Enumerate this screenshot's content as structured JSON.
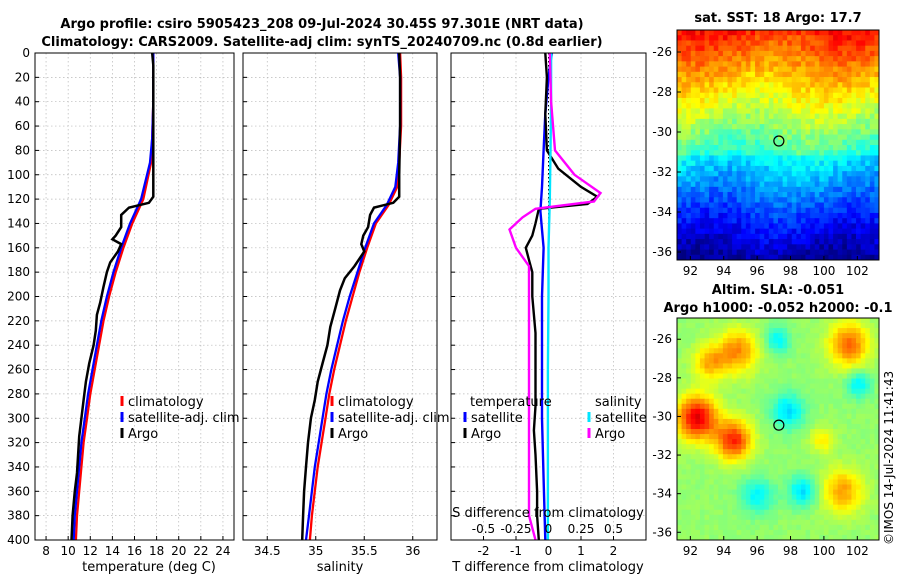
{
  "titles": {
    "line1": "Argo profile: csiro 5905423_208 09-Jul-2024 30.45S 97.301E (NRT data)",
    "line2": "Climatology: CARS2009. Satellite-adj clim: synTS_20240709.nc (0.8d earlier)"
  },
  "watermark": "©IMOS 14-Jul-2024 11:41:43",
  "colors": {
    "climatology": "#ff0000",
    "satellite": "#0000ff",
    "argo": "#000000",
    "sal_satellite": "#00e5ff",
    "sal_argo": "#ff00ff"
  },
  "chart_data": [
    {
      "type": "line",
      "name": "temperature",
      "xlabel": "temperature (deg C)",
      "ylabel": "",
      "xlim": [
        7,
        25
      ],
      "ylim": [
        400,
        0
      ],
      "xticks": [
        8,
        10,
        12,
        14,
        16,
        18,
        20,
        22,
        24
      ],
      "yticks": [
        0,
        20,
        40,
        60,
        80,
        100,
        120,
        140,
        160,
        180,
        200,
        220,
        240,
        260,
        280,
        300,
        320,
        340,
        360,
        380,
        400
      ],
      "legend": [
        "climatology",
        "satellite-adj. clim",
        "Argo"
      ],
      "series": [
        {
          "name": "climatology",
          "color": "#ff0000",
          "points": [
            [
              17.7,
              0
            ],
            [
              17.7,
              40
            ],
            [
              17.6,
              70
            ],
            [
              17.5,
              90
            ],
            [
              16.8,
              120
            ],
            [
              15.8,
              140
            ],
            [
              15.0,
              160
            ],
            [
              14.3,
              180
            ],
            [
              13.7,
              200
            ],
            [
              13.2,
              220
            ],
            [
              12.8,
              240
            ],
            [
              12.4,
              260
            ],
            [
              12.0,
              280
            ],
            [
              11.7,
              300
            ],
            [
              11.4,
              320
            ],
            [
              11.2,
              340
            ],
            [
              11.0,
              360
            ],
            [
              10.8,
              380
            ],
            [
              10.7,
              400
            ]
          ]
        },
        {
          "name": "satellite-adj. clim",
          "color": "#0000ff",
          "points": [
            [
              17.7,
              0
            ],
            [
              17.7,
              40
            ],
            [
              17.6,
              70
            ],
            [
              17.4,
              90
            ],
            [
              16.6,
              120
            ],
            [
              15.6,
              140
            ],
            [
              14.8,
              160
            ],
            [
              14.1,
              180
            ],
            [
              13.5,
              200
            ],
            [
              13.0,
              220
            ],
            [
              12.6,
              240
            ],
            [
              12.2,
              260
            ],
            [
              11.8,
              280
            ],
            [
              11.5,
              300
            ],
            [
              11.2,
              320
            ],
            [
              11.0,
              340
            ],
            [
              10.8,
              360
            ],
            [
              10.6,
              380
            ],
            [
              10.5,
              400
            ]
          ]
        },
        {
          "name": "Argo",
          "color": "#000000",
          "points": [
            [
              17.6,
              0
            ],
            [
              17.7,
              10
            ],
            [
              17.7,
              30
            ],
            [
              17.7,
              60
            ],
            [
              17.7,
              100
            ],
            [
              17.7,
              118
            ],
            [
              17.3,
              123
            ],
            [
              15.5,
              127
            ],
            [
              14.8,
              133
            ],
            [
              14.8,
              143
            ],
            [
              14.3,
              150
            ],
            [
              14.0,
              153
            ],
            [
              14.8,
              157
            ],
            [
              14.5,
              163
            ],
            [
              13.8,
              172
            ],
            [
              13.5,
              180
            ],
            [
              13.2,
              192
            ],
            [
              12.9,
              205
            ],
            [
              12.6,
              215
            ],
            [
              12.5,
              228
            ],
            [
              12.3,
              240
            ],
            [
              11.9,
              255
            ],
            [
              11.6,
              270
            ],
            [
              11.4,
              285
            ],
            [
              11.2,
              300
            ],
            [
              11.0,
              315
            ],
            [
              10.9,
              330
            ],
            [
              10.8,
              345
            ],
            [
              10.6,
              360
            ],
            [
              10.4,
              380
            ],
            [
              10.3,
              400
            ]
          ]
        }
      ]
    },
    {
      "type": "line",
      "name": "salinity",
      "xlabel": "salinity",
      "ylabel": "",
      "xlim": [
        34.25,
        36.25
      ],
      "ylim": [
        400,
        0
      ],
      "xticks": [
        34.5,
        35,
        35.5,
        36
      ],
      "legend": [
        "climatology",
        "satellite-adj. clim",
        "Argo"
      ],
      "series": [
        {
          "name": "climatology",
          "color": "#ff0000",
          "points": [
            [
              35.87,
              0
            ],
            [
              35.88,
              20
            ],
            [
              35.88,
              60
            ],
            [
              35.86,
              90
            ],
            [
              35.84,
              110
            ],
            [
              35.75,
              125
            ],
            [
              35.62,
              140
            ],
            [
              35.53,
              160
            ],
            [
              35.45,
              180
            ],
            [
              35.38,
              200
            ],
            [
              35.31,
              220
            ],
            [
              35.25,
              240
            ],
            [
              35.19,
              260
            ],
            [
              35.14,
              280
            ],
            [
              35.1,
              300
            ],
            [
              35.06,
              320
            ],
            [
              35.02,
              340
            ],
            [
              34.99,
              360
            ],
            [
              34.96,
              380
            ],
            [
              34.94,
              400
            ]
          ]
        },
        {
          "name": "satellite-adj. clim",
          "color": "#0000ff",
          "points": [
            [
              35.85,
              0
            ],
            [
              35.87,
              20
            ],
            [
              35.87,
              60
            ],
            [
              35.85,
              90
            ],
            [
              35.82,
              110
            ],
            [
              35.73,
              125
            ],
            [
              35.6,
              140
            ],
            [
              35.51,
              160
            ],
            [
              35.43,
              180
            ],
            [
              35.35,
              200
            ],
            [
              35.28,
              220
            ],
            [
              35.22,
              240
            ],
            [
              35.16,
              260
            ],
            [
              35.11,
              280
            ],
            [
              35.07,
              300
            ],
            [
              35.03,
              320
            ],
            [
              34.99,
              340
            ],
            [
              34.96,
              360
            ],
            [
              34.93,
              380
            ],
            [
              34.9,
              400
            ]
          ]
        },
        {
          "name": "Argo",
          "color": "#000000",
          "points": [
            [
              35.86,
              0
            ],
            [
              35.87,
              20
            ],
            [
              35.87,
              60
            ],
            [
              35.86,
              100
            ],
            [
              35.86,
              118
            ],
            [
              35.8,
              123
            ],
            [
              35.6,
              127
            ],
            [
              35.56,
              133
            ],
            [
              35.54,
              143
            ],
            [
              35.49,
              150
            ],
            [
              35.47,
              157
            ],
            [
              35.5,
              163
            ],
            [
              35.4,
              175
            ],
            [
              35.3,
              185
            ],
            [
              35.25,
              195
            ],
            [
              35.2,
              210
            ],
            [
              35.15,
              225
            ],
            [
              35.12,
              240
            ],
            [
              35.07,
              255
            ],
            [
              35.02,
              270
            ],
            [
              34.99,
              285
            ],
            [
              34.95,
              300
            ],
            [
              34.92,
              320
            ],
            [
              34.9,
              340
            ],
            [
              34.88,
              360
            ],
            [
              34.87,
              380
            ],
            [
              34.86,
              400
            ]
          ]
        }
      ]
    },
    {
      "type": "line",
      "name": "difference",
      "xlabel": "T difference from climatology",
      "xlabel_top": "S difference from climatology",
      "xlim": [
        -3,
        3
      ],
      "xlim_salinity": [
        -0.75,
        0.75
      ],
      "ylim": [
        400,
        0
      ],
      "xticks": [
        -2,
        -1,
        0,
        1,
        2
      ],
      "xticks_salinity": [
        -0.5,
        -0.25,
        0,
        0.25,
        0.5
      ],
      "xtick_labels_salinity": [
        "-0.5",
        "-0.25",
        "0",
        "0.25",
        "0.5"
      ],
      "legend_headers": [
        "temperature",
        "salinity"
      ],
      "legend": [
        "satellite",
        "Argo",
        "satellite",
        "Argo"
      ],
      "series": [
        {
          "name": "T satellite",
          "color": "#0000ff",
          "points": [
            [
              0.1,
              0
            ],
            [
              0,
              20
            ],
            [
              -0.1,
              50
            ],
            [
              -0.15,
              80
            ],
            [
              -0.2,
              110
            ],
            [
              -0.25,
              130
            ],
            [
              -0.15,
              160
            ],
            [
              -0.2,
              200
            ],
            [
              -0.2,
              250
            ],
            [
              -0.2,
              300
            ],
            [
              -0.15,
              350
            ],
            [
              -0.1,
              400
            ]
          ]
        },
        {
          "name": "T Argo",
          "color": "#000000",
          "points": [
            [
              -0.1,
              0
            ],
            [
              -0.05,
              20
            ],
            [
              -0.1,
              50
            ],
            [
              -0.05,
              80
            ],
            [
              0.3,
              95
            ],
            [
              1.0,
              110
            ],
            [
              1.5,
              118
            ],
            [
              1.2,
              124
            ],
            [
              -0.3,
              128
            ],
            [
              -0.4,
              140
            ],
            [
              -0.5,
              150
            ],
            [
              -0.7,
              160
            ],
            [
              -0.6,
              170
            ],
            [
              -0.5,
              180
            ],
            [
              -0.5,
              190
            ],
            [
              -0.5,
              200
            ],
            [
              -0.4,
              230
            ],
            [
              -0.4,
              250
            ],
            [
              -0.4,
              270
            ],
            [
              -0.4,
              290
            ],
            [
              -0.45,
              310
            ],
            [
              -0.4,
              330
            ],
            [
              -0.35,
              360
            ],
            [
              -0.35,
              380
            ],
            [
              -0.3,
              400
            ]
          ]
        },
        {
          "name": "S satellite",
          "color": "#00e5ff",
          "points": [
            [
              0.02,
              0
            ],
            [
              0.02,
              40
            ],
            [
              0.015,
              80
            ],
            [
              0.01,
              120
            ],
            [
              0,
              160
            ],
            [
              0,
              200
            ],
            [
              -0.005,
              260
            ],
            [
              -0.005,
              320
            ],
            [
              -0.005,
              360
            ],
            [
              -0.005,
              400
            ]
          ]
        },
        {
          "name": "S Argo",
          "color": "#ff00ff",
          "points": [
            [
              0.01,
              0
            ],
            [
              0.02,
              40
            ],
            [
              0.05,
              80
            ],
            [
              0.2,
              100
            ],
            [
              0.4,
              115
            ],
            [
              0.35,
              122
            ],
            [
              -0.1,
              128
            ],
            [
              -0.2,
              135
            ],
            [
              -0.3,
              145
            ],
            [
              -0.25,
              160
            ],
            [
              -0.15,
              175
            ],
            [
              -0.15,
              200
            ],
            [
              -0.15,
              230
            ],
            [
              -0.15,
              260
            ],
            [
              -0.15,
              290
            ],
            [
              -0.15,
              320
            ],
            [
              -0.15,
              350
            ],
            [
              -0.15,
              380
            ],
            [
              -0.1,
              400
            ]
          ]
        }
      ]
    },
    {
      "type": "heatmap",
      "name": "sst",
      "title": "sat. SST: 18 Argo: 17.7",
      "xlim": [
        91.2,
        103.3
      ],
      "ylim": [
        -36.4,
        -24.9
      ],
      "xticks": [
        92,
        94,
        96,
        98,
        100,
        102
      ],
      "yticks": [
        -26,
        -28,
        -30,
        -32,
        -34,
        -36
      ],
      "marker": {
        "lon": 97.301,
        "lat": -30.45
      }
    },
    {
      "type": "heatmap",
      "name": "sla",
      "title_line1": "Altim. SLA: -0.051",
      "title_line2": "Argo h1000: -0.052 h2000: -0.1",
      "xlim": [
        91.2,
        103.3
      ],
      "ylim": [
        -36.4,
        -24.9
      ],
      "xticks": [
        92,
        94,
        96,
        98,
        100,
        102
      ],
      "yticks": [
        -26,
        -28,
        -30,
        -32,
        -34,
        -36
      ],
      "marker": {
        "lon": 97.301,
        "lat": -30.45
      }
    }
  ]
}
